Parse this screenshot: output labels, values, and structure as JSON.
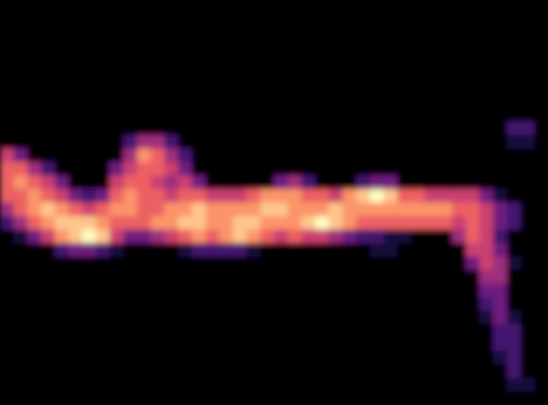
{
  "chart_data": {
    "type": "heatmap",
    "tick_labels": false,
    "zlim": [
      0,
      9
    ],
    "cells": [
      [
        0,
        0,
        0,
        0,
        0,
        0,
        0,
        0,
        0,
        0,
        0,
        0,
        0,
        0,
        0,
        0,
        0,
        0,
        0,
        0,
        0,
        0,
        0,
        0,
        0,
        0,
        0,
        0,
        0,
        0,
        0,
        0,
        0,
        0,
        0,
        0,
        0,
        0,
        0,
        0
      ],
      [
        0,
        0,
        0,
        0,
        0,
        0,
        0,
        0,
        0,
        0,
        0,
        0,
        0,
        0,
        0,
        0,
        0,
        0,
        0,
        0,
        0,
        0,
        0,
        0,
        0,
        0,
        0,
        0,
        0,
        0,
        0,
        0,
        0,
        0,
        0,
        0,
        0,
        0,
        0,
        0
      ],
      [
        0,
        0,
        0,
        0,
        0,
        0,
        0,
        0,
        0,
        0,
        0,
        0,
        0,
        0,
        0,
        0,
        0,
        0,
        0,
        0,
        0,
        0,
        0,
        0,
        0,
        0,
        0,
        0,
        0,
        0,
        0,
        0,
        0,
        0,
        0,
        0,
        0,
        0,
        0,
        0
      ],
      [
        0,
        0,
        0,
        0,
        0,
        0,
        0,
        0,
        0,
        0,
        0,
        0,
        0,
        0,
        0,
        0,
        0,
        0,
        0,
        0,
        0,
        0,
        0,
        0,
        0,
        0,
        0,
        0,
        0,
        0,
        0,
        0,
        0,
        0,
        0,
        0,
        0,
        0,
        0,
        0
      ],
      [
        0,
        0,
        0,
        0,
        0,
        0,
        0,
        0,
        0,
        0,
        0,
        0,
        0,
        0,
        0,
        0,
        0,
        0,
        0,
        0,
        0,
        0,
        0,
        0,
        0,
        0,
        0,
        0,
        0,
        0,
        0,
        0,
        0,
        0,
        0,
        0,
        0,
        0,
        0,
        0
      ],
      [
        0,
        0,
        0,
        0,
        0,
        0,
        0,
        0,
        0,
        0,
        0,
        0,
        0,
        0,
        0,
        0,
        0,
        0,
        0,
        0,
        0,
        0,
        0,
        0,
        0,
        0,
        0,
        0,
        0,
        0,
        0,
        0,
        0,
        0,
        0,
        0,
        0,
        0,
        0,
        0
      ],
      [
        0,
        0,
        0,
        0,
        0,
        0,
        0,
        0,
        0,
        0,
        0,
        0,
        0,
        0,
        0,
        0,
        0,
        0,
        0,
        0,
        0,
        0,
        0,
        0,
        0,
        0,
        0,
        0,
        0,
        0,
        0,
        0,
        0,
        0,
        0,
        0,
        0,
        0,
        0,
        0
      ],
      [
        0,
        0,
        0,
        0,
        0,
        0,
        0,
        0,
        0,
        0,
        0,
        0,
        0,
        0,
        0,
        0,
        0,
        0,
        0,
        0,
        0,
        0,
        0,
        0,
        0,
        0,
        0,
        0,
        0,
        0,
        0,
        0,
        0,
        0,
        0,
        0,
        0,
        0,
        0,
        0
      ],
      [
        0,
        0,
        0,
        0,
        0,
        0,
        0,
        0,
        0,
        0,
        0,
        0,
        0,
        0,
        0,
        0,
        0,
        0,
        0,
        0,
        0,
        0,
        0,
        0,
        0,
        0,
        0,
        0,
        0,
        0,
        0,
        0,
        0,
        0,
        0,
        0,
        0,
        0,
        0,
        0
      ],
      [
        0,
        0,
        0,
        0,
        0,
        0,
        0,
        0,
        0,
        0,
        0,
        0,
        0,
        0,
        0,
        0,
        0,
        0,
        0,
        0,
        0,
        0,
        0,
        0,
        0,
        0,
        0,
        0,
        0,
        0,
        0,
        0,
        0,
        0,
        0,
        0,
        0,
        2,
        2,
        0
      ],
      [
        0,
        0,
        0,
        0,
        0,
        0,
        0,
        0,
        0,
        2,
        4,
        4,
        2,
        0,
        0,
        0,
        0,
        0,
        0,
        0,
        0,
        0,
        0,
        0,
        0,
        0,
        0,
        0,
        0,
        0,
        0,
        0,
        0,
        0,
        0,
        0,
        0,
        1,
        1,
        0
      ],
      [
        5,
        3,
        0,
        0,
        0,
        0,
        0,
        0,
        0,
        4,
        7,
        6,
        4,
        2,
        0,
        0,
        0,
        0,
        0,
        0,
        0,
        0,
        0,
        0,
        0,
        0,
        0,
        0,
        0,
        0,
        0,
        0,
        0,
        0,
        0,
        0,
        0,
        0,
        0,
        0
      ],
      [
        6,
        6,
        4,
        2,
        0,
        0,
        0,
        0,
        3,
        5,
        6,
        6,
        5,
        3,
        0,
        0,
        0,
        0,
        0,
        0,
        0,
        0,
        0,
        0,
        0,
        0,
        0,
        0,
        0,
        0,
        0,
        0,
        0,
        0,
        0,
        0,
        0,
        0,
        0,
        0
      ],
      [
        6,
        7,
        6,
        5,
        3,
        0,
        0,
        0,
        5,
        6,
        6,
        5,
        4,
        5,
        3,
        0,
        0,
        0,
        0,
        0,
        3,
        4,
        2,
        0,
        0,
        0,
        2,
        3,
        3,
        0,
        0,
        0,
        0,
        0,
        0,
        0,
        0,
        0,
        0,
        0
      ],
      [
        6,
        6,
        7,
        6,
        5,
        3,
        2,
        3,
        6,
        7,
        6,
        6,
        5,
        6,
        6,
        5,
        5,
        5,
        6,
        7,
        7,
        7,
        6,
        6,
        5,
        7,
        8,
        9,
        8,
        6,
        6,
        5,
        5,
        5,
        5,
        3,
        1,
        0,
        0,
        0
      ],
      [
        4,
        6,
        7,
        8,
        7,
        6,
        5,
        6,
        7,
        7,
        6,
        6,
        7,
        7,
        8,
        7,
        7,
        7,
        7,
        8,
        8,
        7,
        7,
        7,
        8,
        7,
        7,
        7,
        7,
        7,
        7,
        7,
        7,
        6,
        6,
        5,
        3,
        2,
        0,
        0
      ],
      [
        2,
        4,
        6,
        7,
        8,
        8,
        8,
        7,
        6,
        6,
        6,
        7,
        7,
        8,
        8,
        7,
        7,
        8,
        8,
        7,
        7,
        7,
        8,
        9,
        8,
        7,
        6,
        6,
        6,
        6,
        6,
        6,
        6,
        5,
        6,
        5,
        3,
        2,
        0,
        0
      ],
      [
        0,
        1,
        3,
        5,
        7,
        8,
        9,
        8,
        5,
        3,
        3,
        4,
        5,
        6,
        7,
        6,
        7,
        8,
        7,
        6,
        5,
        6,
        5,
        5,
        4,
        3,
        2,
        2,
        1,
        1,
        0,
        0,
        0,
        4,
        6,
        5,
        2,
        0,
        0,
        0
      ],
      [
        0,
        0,
        0,
        0,
        2,
        3,
        3,
        2,
        1,
        0,
        0,
        0,
        0,
        1,
        2,
        2,
        2,
        2,
        1,
        0,
        0,
        0,
        0,
        0,
        0,
        0,
        0,
        1,
        1,
        0,
        0,
        0,
        0,
        0,
        5,
        5,
        3,
        0,
        0,
        0
      ],
      [
        0,
        0,
        0,
        0,
        0,
        0,
        0,
        0,
        0,
        0,
        0,
        0,
        0,
        0,
        0,
        0,
        0,
        0,
        0,
        0,
        0,
        0,
        0,
        0,
        0,
        0,
        0,
        0,
        0,
        0,
        0,
        0,
        0,
        0,
        3,
        5,
        4,
        1,
        0,
        0
      ],
      [
        0,
        0,
        0,
        0,
        0,
        0,
        0,
        0,
        0,
        0,
        0,
        0,
        0,
        0,
        0,
        0,
        0,
        0,
        0,
        0,
        0,
        0,
        0,
        0,
        0,
        0,
        0,
        0,
        0,
        0,
        0,
        0,
        0,
        0,
        0,
        4,
        4,
        0,
        0,
        0
      ],
      [
        0,
        0,
        0,
        0,
        0,
        0,
        0,
        0,
        0,
        0,
        0,
        0,
        0,
        0,
        0,
        0,
        0,
        0,
        0,
        0,
        0,
        0,
        0,
        0,
        0,
        0,
        0,
        0,
        0,
        0,
        0,
        0,
        0,
        0,
        0,
        3,
        3,
        0,
        0,
        0
      ],
      [
        0,
        0,
        0,
        0,
        0,
        0,
        0,
        0,
        0,
        0,
        0,
        0,
        0,
        0,
        0,
        0,
        0,
        0,
        0,
        0,
        0,
        0,
        0,
        0,
        0,
        0,
        0,
        0,
        0,
        0,
        0,
        0,
        0,
        0,
        0,
        2,
        3,
        0,
        0,
        0
      ],
      [
        0,
        0,
        0,
        0,
        0,
        0,
        0,
        0,
        0,
        0,
        0,
        0,
        0,
        0,
        0,
        0,
        0,
        0,
        0,
        0,
        0,
        0,
        0,
        0,
        0,
        0,
        0,
        0,
        0,
        0,
        0,
        0,
        0,
        0,
        0,
        1,
        3,
        1,
        0,
        0
      ],
      [
        0,
        0,
        0,
        0,
        0,
        0,
        0,
        0,
        0,
        0,
        0,
        0,
        0,
        0,
        0,
        0,
        0,
        0,
        0,
        0,
        0,
        0,
        0,
        0,
        0,
        0,
        0,
        0,
        0,
        0,
        0,
        0,
        0,
        0,
        0,
        0,
        2,
        2,
        0,
        0
      ],
      [
        0,
        0,
        0,
        0,
        0,
        0,
        0,
        0,
        0,
        0,
        0,
        0,
        0,
        0,
        0,
        0,
        0,
        0,
        0,
        0,
        0,
        0,
        0,
        0,
        0,
        0,
        0,
        0,
        0,
        0,
        0,
        0,
        0,
        0,
        0,
        0,
        2,
        2,
        0,
        0
      ],
      [
        0,
        0,
        0,
        0,
        0,
        0,
        0,
        0,
        0,
        0,
        0,
        0,
        0,
        0,
        0,
        0,
        0,
        0,
        0,
        0,
        0,
        0,
        0,
        0,
        0,
        0,
        0,
        0,
        0,
        0,
        0,
        0,
        0,
        0,
        0,
        0,
        1,
        2,
        0,
        0
      ],
      [
        0,
        0,
        0,
        0,
        0,
        0,
        0,
        0,
        0,
        0,
        0,
        0,
        0,
        0,
        0,
        0,
        0,
        0,
        0,
        0,
        0,
        0,
        0,
        0,
        0,
        0,
        0,
        0,
        0,
        0,
        0,
        0,
        0,
        0,
        0,
        0,
        0,
        2,
        0,
        0
      ],
      [
        0,
        0,
        0,
        0,
        0,
        0,
        0,
        0,
        0,
        0,
        0,
        0,
        0,
        0,
        0,
        0,
        0,
        0,
        0,
        0,
        0,
        0,
        0,
        0,
        0,
        0,
        0,
        0,
        0,
        0,
        0,
        0,
        0,
        0,
        0,
        0,
        0,
        1,
        1,
        0
      ],
      [
        0,
        0,
        0,
        0,
        0,
        0,
        0,
        0,
        0,
        0,
        0,
        0,
        0,
        0,
        0,
        0,
        0,
        0,
        0,
        0,
        0,
        0,
        0,
        0,
        0,
        0,
        0,
        0,
        0,
        0,
        0,
        0,
        0,
        0,
        0,
        0,
        0,
        0,
        0,
        0
      ]
    ]
  }
}
